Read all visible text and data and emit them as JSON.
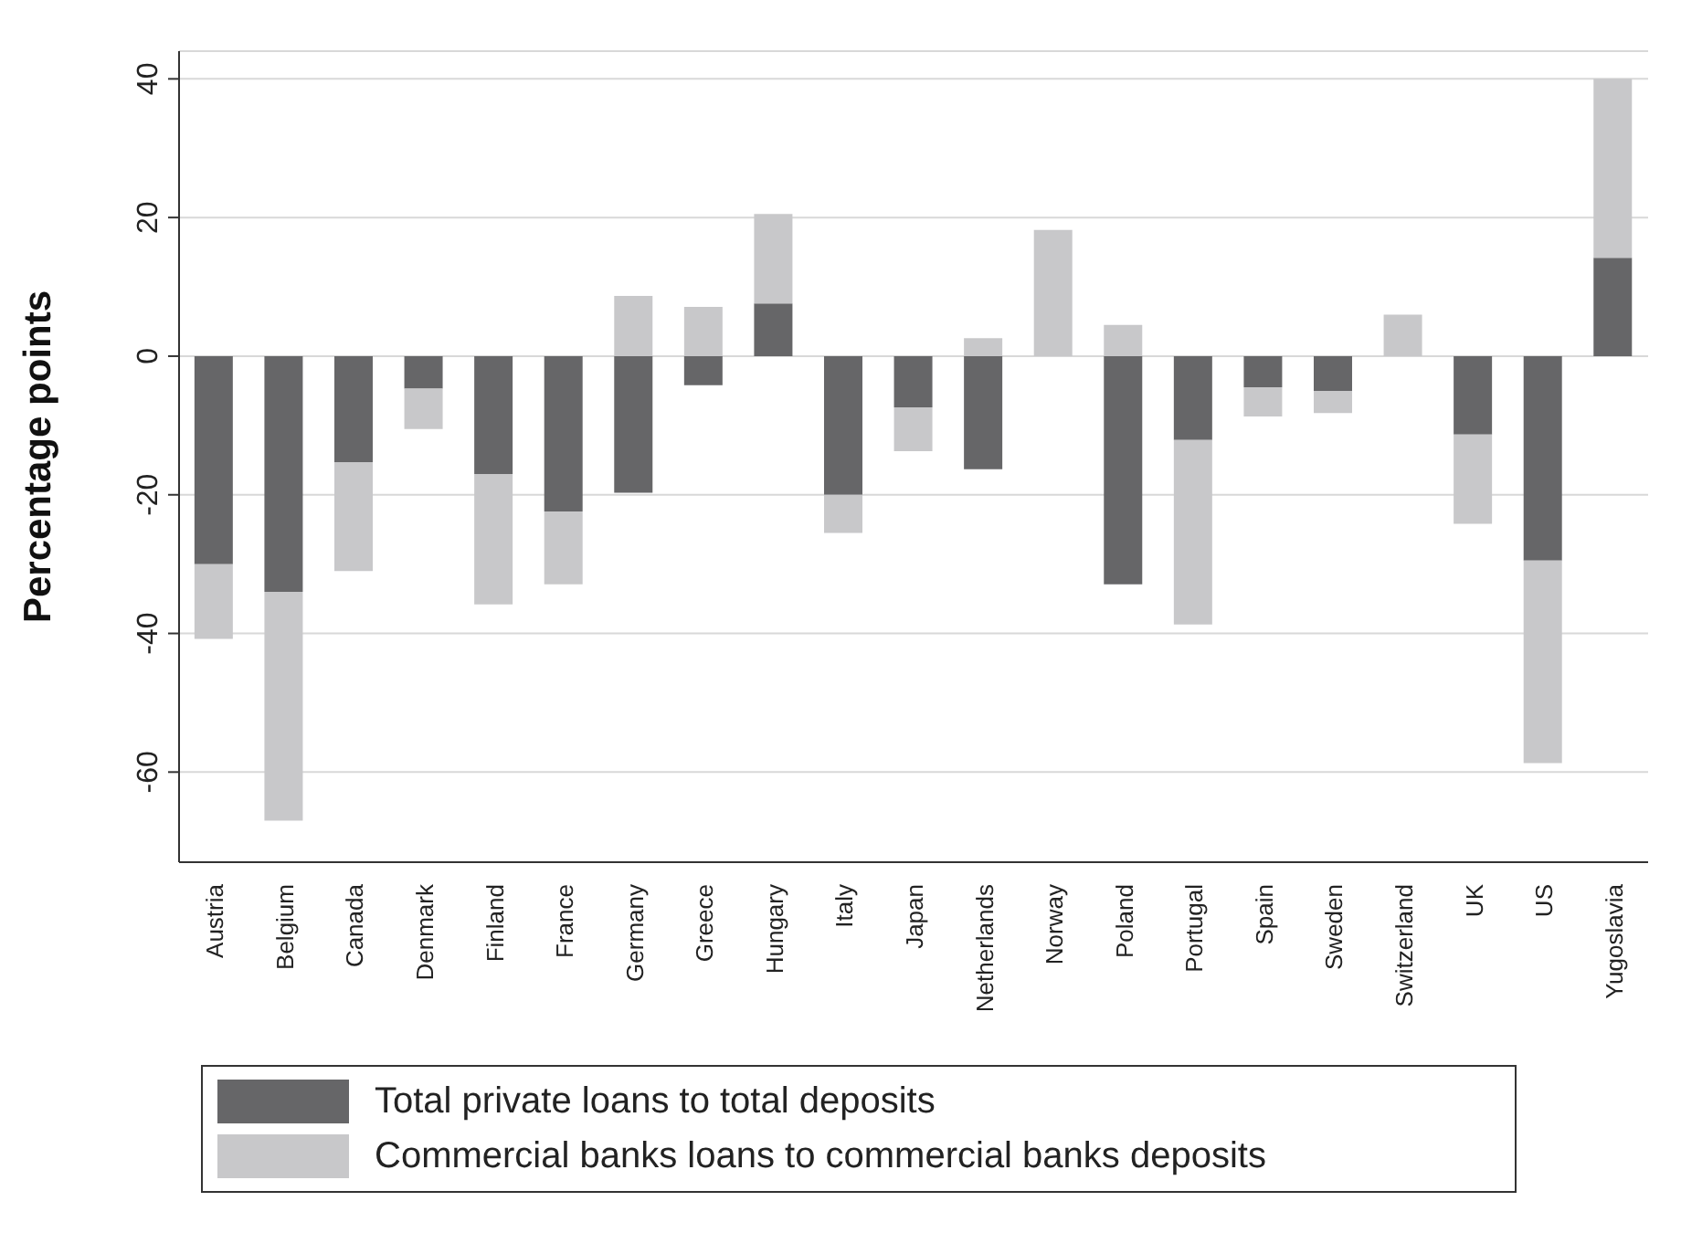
{
  "chart_data": {
    "type": "bar",
    "stacked": true,
    "ylabel": "Percentage points",
    "categories": [
      "Austria",
      "Belgium",
      "Canada",
      "Denmark",
      "Finland",
      "France",
      "Germany",
      "Greece",
      "Hungary",
      "Italy",
      "Japan",
      "Netherlands",
      "Norway",
      "Poland",
      "Portugal",
      "Spain",
      "Sweden",
      "Switzerland",
      "UK",
      "US",
      "Yugoslavia"
    ],
    "series": [
      {
        "name": "Total private loans to total deposits",
        "color": "#666668",
        "values": [
          -30,
          -34,
          -15.3,
          -4.7,
          -17,
          -22.4,
          -19.7,
          -4.2,
          7.6,
          -20,
          -7.4,
          -16.3,
          0,
          -32.9,
          -12.1,
          -4.5,
          -5,
          0,
          -11.3,
          -29.5,
          14.2
        ]
      },
      {
        "name": "Commercial banks loans to commercial banks deposits",
        "color": "#c8c8ca",
        "values": [
          -10.8,
          -33,
          -15.7,
          -5.8,
          -18.8,
          -10.5,
          8.7,
          7.1,
          12.9,
          -5.5,
          -6.3,
          2.6,
          18.2,
          4.5,
          -26.6,
          -4.2,
          -3.2,
          6,
          -12.9,
          -29.2,
          25.8
        ]
      }
    ],
    "ylim": [
      -73,
      44
    ],
    "yticks": [
      -60,
      -40,
      -20,
      0,
      20,
      40
    ],
    "grid": "y",
    "legend": "bottom"
  }
}
